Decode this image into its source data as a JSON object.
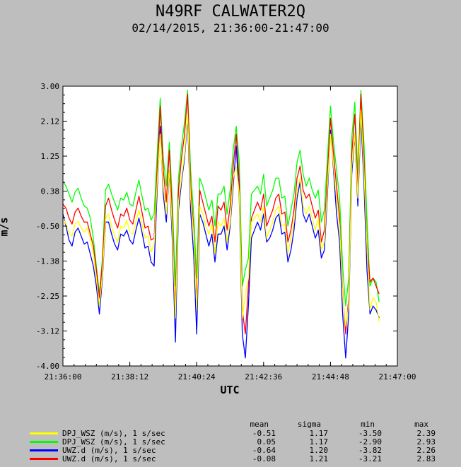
{
  "title": "N49RF CALWATER2Q",
  "subtitle": "02/14/2015, 21:36:00-21:47:00",
  "chart_data": {
    "type": "line",
    "xlabel": "UTC",
    "ylabel": "m/s",
    "xlim": [
      "21:36:00",
      "21:47:00"
    ],
    "ylim": [
      -4.0,
      3.0
    ],
    "x_ticks": [
      "21:36:00",
      "21:38:12",
      "21:40:24",
      "21:42:36",
      "21:44:48",
      "21:47:00"
    ],
    "y_ticks": [
      "3.00",
      "2.12",
      "1.25",
      "0.38",
      "-0.50",
      "-1.38",
      "-2.25",
      "-3.12",
      "-4.00"
    ],
    "legend_position": "bottom",
    "stat_headers": [
      "mean",
      "sigma",
      "min",
      "max"
    ],
    "x_seconds": [
      0,
      6,
      12,
      18,
      24,
      30,
      36,
      42,
      48,
      54,
      60,
      66,
      72,
      78,
      84,
      90,
      96,
      102,
      108,
      114,
      120,
      126,
      132,
      138,
      144,
      150,
      156,
      162,
      168,
      174,
      180,
      186,
      192,
      198,
      204,
      210,
      216,
      222,
      228,
      234,
      240,
      246,
      252,
      258,
      264,
      270,
      276,
      282,
      288,
      294,
      300,
      306,
      312,
      318,
      324,
      330,
      336,
      342,
      348,
      354,
      360,
      366,
      372,
      378,
      384,
      390,
      396,
      402,
      408,
      414,
      420,
      426,
      432,
      438,
      444,
      450,
      456,
      462,
      468,
      474,
      480,
      486,
      492,
      498,
      504,
      510,
      516,
      522,
      528,
      534,
      540,
      546,
      552,
      558,
      564,
      570,
      576,
      582,
      588,
      594,
      600,
      606,
      612,
      618,
      624,
      630,
      636,
      642,
      648,
      654,
      660
    ],
    "series": [
      {
        "name": "DPJ_WSZ (m/s), 1 s/sec",
        "color": "#ffff00",
        "mean": "-0.51",
        "sigma": "1.17",
        "min": "-3.50",
        "max": "2.39",
        "values": [
          -0.3,
          -0.45,
          -0.65,
          -0.75,
          -0.45,
          -0.38,
          -0.55,
          -0.65,
          -0.55,
          -0.8,
          -1.2,
          -1.8,
          -2.5,
          -1.7,
          -0.3,
          -0.2,
          -0.5,
          -0.75,
          -0.9,
          -0.5,
          -0.55,
          -0.35,
          -0.65,
          -0.7,
          -0.4,
          -0.1,
          -0.45,
          -0.8,
          -0.75,
          -1.15,
          -0.95,
          0.6,
          1.8,
          0.5,
          -0.2,
          0.9,
          -0.6,
          -2.8,
          0.1,
          0.7,
          1.3,
          2.3,
          0.2,
          -0.7,
          -2.6,
          0.0,
          -0.2,
          -0.5,
          -0.7,
          -0.45,
          -1.2,
          -0.4,
          -0.5,
          -0.3,
          -0.9,
          -0.4,
          0.7,
          1.0,
          0.3,
          -2.8,
          -2.2,
          -1.8,
          -0.4,
          -0.3,
          -0.2,
          -0.4,
          0.0,
          -0.8,
          -0.6,
          -0.4,
          -0.1,
          0.0,
          -0.5,
          -0.45,
          -1.2,
          -0.8,
          -0.4,
          0.4,
          0.7,
          0.0,
          -0.2,
          0.0,
          -0.3,
          -0.6,
          -0.3,
          -1.1,
          -0.9,
          0.5,
          1.8,
          1.0,
          0.2,
          -0.5,
          -2.2,
          -3.0,
          -2.5,
          1.0,
          1.8,
          0.2,
          2.4,
          0.9,
          -1.0,
          -2.6,
          -2.3,
          -2.4,
          -2.9
        ]
      },
      {
        "name": "DPJ_WSZ (m/s), 1 s/sec",
        "color": "#00ff00",
        "mean": "0.05",
        "sigma": "1.17",
        "min": "-2.90",
        "max": "2.93",
        "values": [
          0.62,
          0.5,
          0.3,
          0.1,
          0.35,
          0.45,
          0.2,
          0.0,
          -0.05,
          -0.3,
          -0.8,
          -1.5,
          -2.2,
          -1.3,
          0.4,
          0.55,
          0.3,
          0.1,
          -0.1,
          0.2,
          0.15,
          0.35,
          0.05,
          0.0,
          0.35,
          0.65,
          0.25,
          -0.1,
          -0.05,
          -0.35,
          -0.2,
          1.3,
          2.7,
          1.2,
          0.5,
          1.6,
          0.1,
          -2.0,
          0.7,
          1.5,
          2.1,
          2.9,
          0.9,
          -0.2,
          -1.8,
          0.7,
          0.5,
          0.2,
          -0.1,
          0.15,
          -0.5,
          0.3,
          0.3,
          0.5,
          -0.2,
          0.4,
          1.4,
          2.0,
          1.1,
          -2.0,
          -1.6,
          -1.3,
          0.3,
          0.4,
          0.5,
          0.3,
          0.8,
          0.0,
          0.2,
          0.4,
          0.7,
          0.7,
          0.2,
          0.25,
          -0.5,
          -0.1,
          0.3,
          1.1,
          1.4,
          0.8,
          0.5,
          0.7,
          0.4,
          0.2,
          0.4,
          -0.4,
          -0.1,
          1.2,
          2.5,
          1.6,
          0.9,
          0.2,
          -1.5,
          -2.5,
          -1.8,
          1.7,
          2.6,
          0.8,
          2.9,
          1.6,
          -0.3,
          -2.0,
          -1.8,
          -1.9,
          -2.4
        ]
      },
      {
        "name": "UWZ.d (m/s), 1 s/sec",
        "color": "#0000ff",
        "mean": "-0.64",
        "sigma": "1.20",
        "min": "-3.82",
        "max": "2.26",
        "values": [
          -0.2,
          -0.5,
          -0.85,
          -1.0,
          -0.65,
          -0.55,
          -0.75,
          -0.95,
          -0.9,
          -1.2,
          -1.5,
          -2.0,
          -2.7,
          -1.8,
          -0.4,
          -0.4,
          -0.7,
          -0.95,
          -1.1,
          -0.7,
          -0.75,
          -0.6,
          -0.85,
          -0.95,
          -0.6,
          -0.3,
          -0.65,
          -1.05,
          -1.0,
          -1.4,
          -1.5,
          0.4,
          2.0,
          0.3,
          -0.4,
          0.9,
          -0.9,
          -3.4,
          -0.1,
          0.6,
          1.2,
          2.2,
          -0.1,
          -1.2,
          -3.2,
          -0.2,
          -0.4,
          -0.7,
          -1.0,
          -0.7,
          -1.4,
          -0.7,
          -0.7,
          -0.5,
          -1.1,
          -0.5,
          0.5,
          1.5,
          0.2,
          -3.2,
          -3.8,
          -2.5,
          -0.8,
          -0.6,
          -0.4,
          -0.6,
          -0.2,
          -0.9,
          -0.8,
          -0.6,
          -0.3,
          -0.2,
          -0.7,
          -0.65,
          -1.4,
          -1.1,
          -0.6,
          0.2,
          0.6,
          -0.2,
          -0.4,
          -0.2,
          -0.5,
          -0.8,
          -0.6,
          -1.3,
          -1.1,
          0.3,
          1.9,
          0.9,
          -0.2,
          -0.9,
          -2.7,
          -3.8,
          -2.7,
          0.8,
          1.8,
          0.0,
          2.2,
          0.6,
          -1.6,
          -2.7,
          -2.5,
          -2.6,
          -2.8
        ]
      },
      {
        "name": "UWZ.d (m/s), 1 s/sec",
        "color": "#ff0000",
        "mean": "-0.08",
        "sigma": "1.21",
        "min": "-3.21",
        "max": "2.83",
        "values": [
          0.05,
          -0.05,
          -0.3,
          -0.45,
          -0.15,
          -0.05,
          -0.25,
          -0.4,
          -0.4,
          -0.7,
          -1.0,
          -1.6,
          -2.3,
          -1.4,
          0.0,
          0.2,
          -0.1,
          -0.35,
          -0.55,
          -0.2,
          -0.25,
          -0.05,
          -0.35,
          -0.45,
          -0.1,
          0.25,
          -0.15,
          -0.55,
          -0.5,
          -0.85,
          -0.8,
          0.9,
          2.5,
          0.9,
          0.1,
          1.4,
          -0.3,
          -2.6,
          0.4,
          1.2,
          1.8,
          2.8,
          0.5,
          -0.6,
          -2.4,
          0.4,
          0.1,
          -0.2,
          -0.5,
          -0.25,
          -0.9,
          0.0,
          -0.1,
          0.1,
          -0.6,
          0.0,
          1.0,
          1.8,
          0.6,
          -2.6,
          -3.2,
          -2.0,
          -0.3,
          -0.1,
          0.1,
          -0.1,
          0.3,
          -0.5,
          -0.3,
          -0.1,
          0.2,
          0.3,
          -0.2,
          -0.15,
          -0.9,
          -0.6,
          -0.1,
          0.7,
          1.0,
          0.4,
          0.2,
          0.3,
          0.0,
          -0.3,
          -0.1,
          -0.9,
          -0.6,
          0.8,
          2.2,
          1.3,
          0.5,
          -0.3,
          -2.1,
          -3.2,
          -2.3,
          1.3,
          2.3,
          0.4,
          2.8,
          1.2,
          -0.9,
          -1.9,
          -1.8,
          -2.0,
          -2.2
        ]
      }
    ]
  }
}
